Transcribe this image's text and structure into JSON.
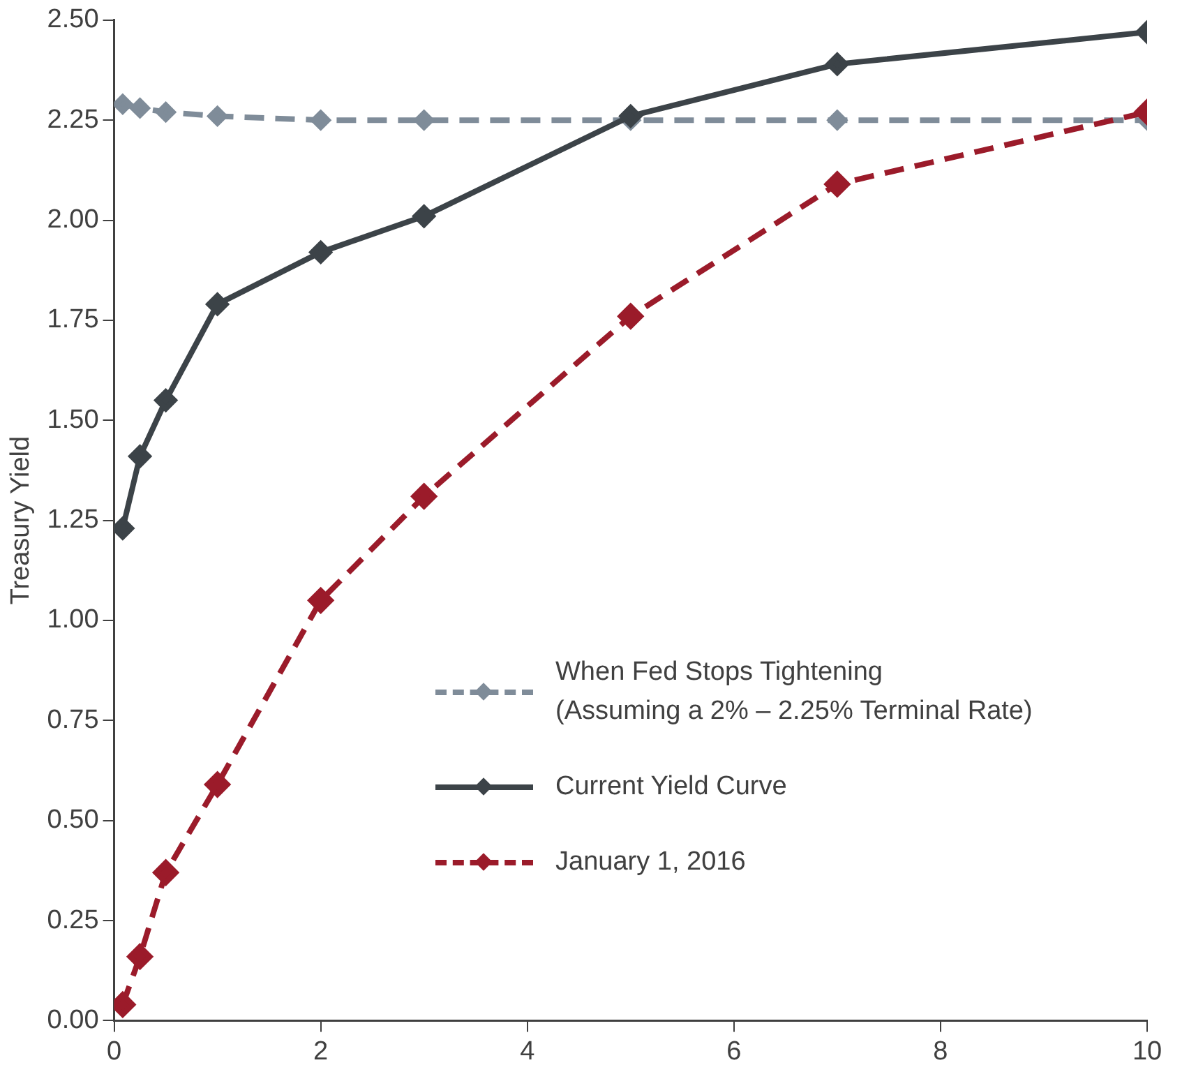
{
  "chart_data": {
    "type": "line",
    "ylabel": "Treasury Yield",
    "xlim": [
      0,
      10
    ],
    "xticks": [
      0,
      2,
      4,
      6,
      8,
      10
    ],
    "ylim": [
      0,
      2.5
    ],
    "yticks": [
      {
        "value": 0,
        "label": "0.00"
      },
      {
        "value": 0.25,
        "label": "0.25"
      },
      {
        "value": 0.5,
        "label": "0.50"
      },
      {
        "value": 0.75,
        "label": "0.75"
      },
      {
        "value": 1,
        "label": "1.00"
      },
      {
        "value": 1.25,
        "label": "1.25"
      },
      {
        "value": 1.5,
        "label": "1.50"
      },
      {
        "value": 1.75,
        "label": "1.75"
      },
      {
        "value": 2,
        "label": "2.00"
      },
      {
        "value": 2.25,
        "label": "2.25"
      },
      {
        "value": 2.5,
        "label": "2.50"
      }
    ],
    "x": [
      0.083,
      0.25,
      0.5,
      1,
      2,
      3,
      5,
      7,
      10
    ],
    "series": [
      {
        "name": "When Fed Stops Tightening\n(Assuming a 2% – 2.25% Terminal Rate)",
        "color": "#7f8c99",
        "line_style": "dashed",
        "values": [
          2.29,
          2.28,
          2.27,
          2.26,
          2.25,
          2.25,
          2.25,
          2.25,
          2.25
        ]
      },
      {
        "name": "Current Yield Curve",
        "color": "#3c4348",
        "line_style": "solid",
        "values": [
          1.23,
          1.41,
          1.55,
          1.79,
          1.92,
          2.01,
          2.26,
          2.39,
          2.47
        ]
      },
      {
        "name": "January 1, 2016",
        "color": "#9b1b2a",
        "line_style": "dashed",
        "values": [
          0.04,
          0.16,
          0.37,
          0.59,
          1.05,
          1.31,
          1.76,
          2.09,
          2.27
        ]
      }
    ],
    "marker": "diamond",
    "grid": false,
    "legend": "bottom right"
  }
}
